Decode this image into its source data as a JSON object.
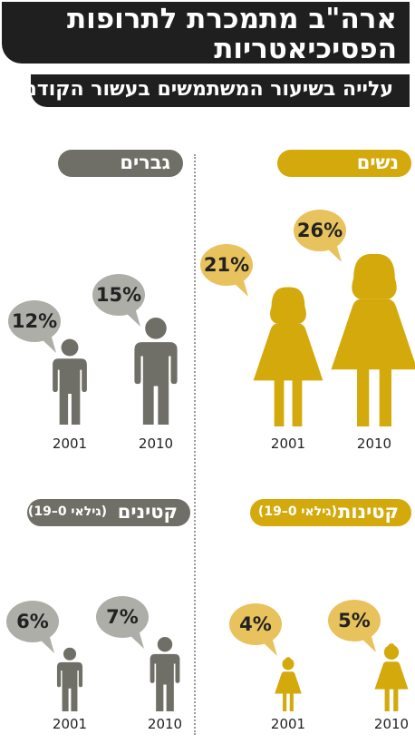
{
  "title": {
    "line1": "ארה\"ב מתמכרת לתרופות",
    "line2": "הפסיכיאטריות"
  },
  "subtitle": "עלייה בשיעור המשתמשים בעשור הקודם",
  "colors": {
    "women": "#d4a90c",
    "men": "#6f6f67",
    "women_bubble": "#e8c25c",
    "men_bubble": "#aeaea8",
    "dark": "#1f1f1f"
  },
  "panels": {
    "women": {
      "label": "נשים",
      "age": ""
    },
    "men": {
      "label": "גברים",
      "age": ""
    },
    "girls": {
      "label": "קטינות",
      "age": "(גילאי 0–19)"
    },
    "boys": {
      "label": "קטינים",
      "age": "(גילאי 0–19)"
    }
  },
  "chart_data": [
    {
      "type": "bar",
      "title": "נשים",
      "categories": [
        "2001",
        "2010"
      ],
      "values": [
        21,
        26
      ],
      "value_labels": [
        "21%",
        "26%"
      ],
      "icon": "woman-icon"
    },
    {
      "type": "bar",
      "title": "גברים",
      "categories": [
        "2001",
        "2010"
      ],
      "values": [
        12,
        15
      ],
      "value_labels": [
        "12%",
        "15%"
      ],
      "icon": "man-icon"
    },
    {
      "type": "bar",
      "title": "קטינות (גילאי 0–19)",
      "categories": [
        "2001",
        "2010"
      ],
      "values": [
        4,
        5
      ],
      "value_labels": [
        "4%",
        "5%"
      ],
      "icon": "girl-icon"
    },
    {
      "type": "bar",
      "title": "קטינים (גילאי 0–19)",
      "categories": [
        "2001",
        "2010"
      ],
      "values": [
        6,
        7
      ],
      "value_labels": [
        "6%",
        "7%"
      ],
      "icon": "boy-icon"
    }
  ]
}
